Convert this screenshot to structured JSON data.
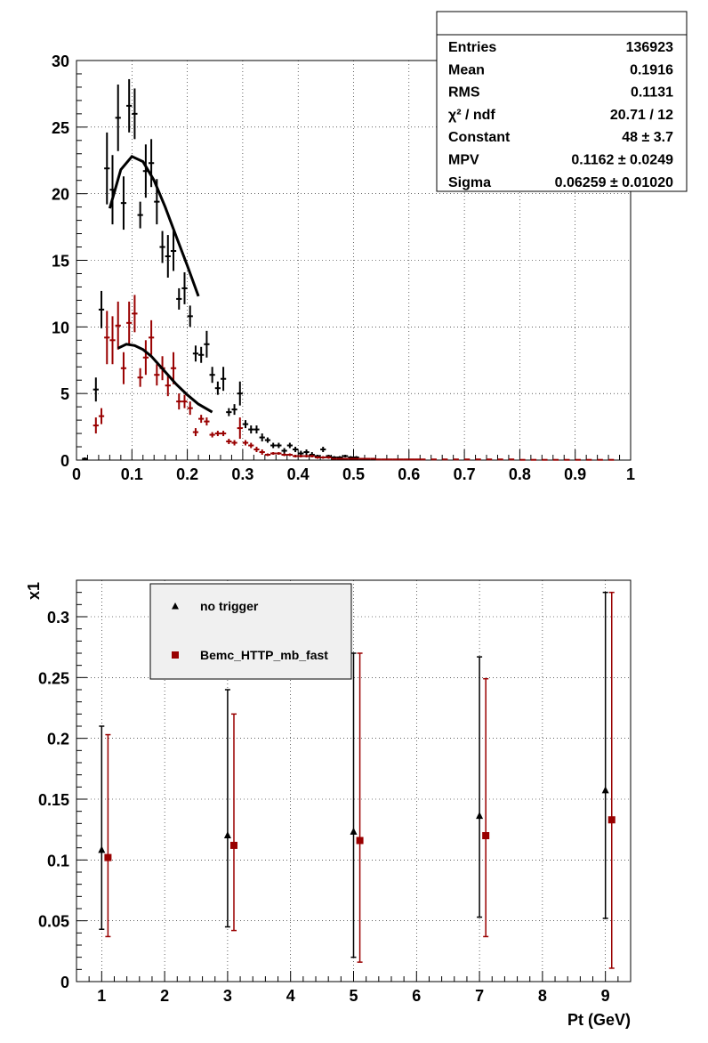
{
  "chart_data": [
    {
      "type": "histogram",
      "xlim": [
        0,
        1
      ],
      "ylim": [
        0,
        30
      ],
      "grid": true,
      "x_ticks": [
        "0",
        "0.1",
        "0.2",
        "0.3",
        "0.4",
        "0.5",
        "0.6",
        "0.7",
        "0.8",
        "0.9",
        "1"
      ],
      "y_ticks": [
        "0",
        "5",
        "10",
        "15",
        "20",
        "25",
        "30"
      ],
      "stats": [
        {
          "label": "Entries",
          "value": "136923"
        },
        {
          "label": "Mean",
          "value": "0.1916"
        },
        {
          "label": "RMS",
          "value": "0.1131"
        },
        {
          "label": "χ² / ndf",
          "value": "20.71 / 12"
        },
        {
          "label": "Constant",
          "value": "48 ± 3.7"
        },
        {
          "label": "MPV",
          "value": "0.1162 ± 0.0249"
        },
        {
          "label": "Sigma",
          "value": "0.06259 ± 0.01020"
        }
      ],
      "series": [
        {
          "color": "#000000",
          "points": [
            [
              0.015,
              0.1,
              0.1
            ],
            [
              0.035,
              5.3,
              0.9
            ],
            [
              0.045,
              11.3,
              1.4
            ],
            [
              0.055,
              21.9,
              2.7
            ],
            [
              0.065,
              20.3,
              2.6
            ],
            [
              0.075,
              25.7,
              2.5
            ],
            [
              0.085,
              19.3,
              2.0
            ],
            [
              0.095,
              26.6,
              2.0
            ],
            [
              0.105,
              26.0,
              1.9
            ],
            [
              0.115,
              18.4,
              1.0
            ],
            [
              0.125,
              21.7,
              2.0
            ],
            [
              0.135,
              22.3,
              1.8
            ],
            [
              0.145,
              19.4,
              1.7
            ],
            [
              0.155,
              16.0,
              1.2
            ],
            [
              0.165,
              15.3,
              1.6
            ],
            [
              0.175,
              15.7,
              1.5
            ],
            [
              0.185,
              12.1,
              0.8
            ],
            [
              0.195,
              12.9,
              1.2
            ],
            [
              0.205,
              10.8,
              0.8
            ],
            [
              0.215,
              8.0,
              0.6
            ],
            [
              0.225,
              7.9,
              0.6
            ],
            [
              0.235,
              8.7,
              1.0
            ],
            [
              0.245,
              6.4,
              0.6
            ],
            [
              0.255,
              5.4,
              0.5
            ],
            [
              0.265,
              6.1,
              0.9
            ],
            [
              0.275,
              3.6,
              0.3
            ],
            [
              0.285,
              3.8,
              0.4
            ],
            [
              0.295,
              5.0,
              0.9
            ],
            [
              0.305,
              2.7,
              0.3
            ],
            [
              0.315,
              2.3,
              0.3
            ],
            [
              0.325,
              2.3,
              0.3
            ],
            [
              0.335,
              1.7,
              0.3
            ],
            [
              0.345,
              1.5,
              0.2
            ],
            [
              0.355,
              1.1,
              0.2
            ],
            [
              0.365,
              1.1,
              0.2
            ],
            [
              0.375,
              0.7,
              0.2
            ],
            [
              0.385,
              1.1,
              0.2
            ],
            [
              0.395,
              0.8,
              0.2
            ],
            [
              0.405,
              0.5,
              0.2
            ],
            [
              0.415,
              0.6,
              0.2
            ],
            [
              0.425,
              0.4,
              0.2
            ],
            [
              0.435,
              0.3,
              0.1
            ],
            [
              0.445,
              0.8,
              0.2
            ],
            [
              0.455,
              0.3,
              0.1
            ],
            [
              0.465,
              0.2,
              0.1
            ],
            [
              0.475,
              0.2,
              0.1
            ],
            [
              0.485,
              0.3,
              0.1
            ],
            [
              0.495,
              0.2,
              0.1
            ],
            [
              0.505,
              0.2,
              0.1
            ]
          ],
          "fit": [
            [
              0.06,
              18.9
            ],
            [
              0.08,
              21.8
            ],
            [
              0.1,
              22.8
            ],
            [
              0.12,
              22.4
            ],
            [
              0.14,
              21.0
            ],
            [
              0.16,
              19.0
            ],
            [
              0.18,
              16.8
            ],
            [
              0.2,
              14.6
            ],
            [
              0.22,
              12.3
            ]
          ]
        },
        {
          "color": "#990000",
          "points": [
            [
              0.035,
              2.6,
              0.6
            ],
            [
              0.045,
              3.3,
              0.6
            ],
            [
              0.055,
              9.2,
              2.0
            ],
            [
              0.065,
              9.0,
              1.8
            ],
            [
              0.075,
              10.1,
              1.8
            ],
            [
              0.085,
              6.9,
              1.2
            ],
            [
              0.095,
              10.3,
              1.6
            ],
            [
              0.105,
              11.0,
              1.4
            ],
            [
              0.115,
              6.2,
              0.7
            ],
            [
              0.125,
              7.7,
              1.3
            ],
            [
              0.135,
              9.2,
              1.3
            ],
            [
              0.145,
              6.4,
              0.8
            ],
            [
              0.155,
              6.9,
              0.9
            ],
            [
              0.165,
              5.6,
              0.8
            ],
            [
              0.175,
              6.9,
              1.2
            ],
            [
              0.185,
              4.4,
              0.6
            ],
            [
              0.195,
              4.4,
              0.5
            ],
            [
              0.205,
              3.9,
              0.5
            ],
            [
              0.215,
              2.1,
              0.3
            ],
            [
              0.225,
              3.1,
              0.3
            ],
            [
              0.235,
              2.9,
              0.3
            ],
            [
              0.245,
              1.9,
              0.2
            ],
            [
              0.255,
              2.0,
              0.2
            ],
            [
              0.265,
              2.0,
              0.2
            ],
            [
              0.275,
              1.4,
              0.2
            ],
            [
              0.285,
              1.3,
              0.2
            ],
            [
              0.295,
              2.4,
              0.8
            ],
            [
              0.305,
              1.3,
              0.2
            ],
            [
              0.315,
              1.1,
              0.2
            ],
            [
              0.325,
              0.8,
              0.2
            ],
            [
              0.335,
              0.6,
              0.2
            ],
            [
              0.345,
              0.4,
              0.1
            ],
            [
              0.355,
              0.5,
              0.1
            ],
            [
              0.365,
              0.5,
              0.1
            ],
            [
              0.375,
              0.4,
              0.1
            ],
            [
              0.385,
              0.4,
              0.1
            ],
            [
              0.395,
              0.3,
              0.1
            ],
            [
              0.405,
              0.3,
              0.1
            ],
            [
              0.415,
              0.3,
              0.1
            ],
            [
              0.425,
              0.3,
              0.1
            ],
            [
              0.435,
              0.2,
              0.1
            ],
            [
              0.445,
              0.2,
              0.1
            ],
            [
              0.455,
              0.2,
              0.1
            ],
            [
              0.465,
              0.1,
              0.05
            ],
            [
              0.475,
              0.1,
              0.05
            ],
            [
              0.485,
              0.1,
              0.05
            ],
            [
              0.495,
              0.1,
              0.05
            ],
            [
              0.505,
              0.1,
              0.05
            ],
            [
              0.515,
              0.1,
              0.05
            ],
            [
              0.525,
              0.1,
              0.05
            ],
            [
              0.535,
              0.1,
              0.05
            ],
            [
              0.545,
              0.05,
              0.05
            ],
            [
              0.555,
              0.05,
              0.05
            ],
            [
              0.565,
              0.05,
              0.05
            ],
            [
              0.575,
              0.05,
              0.05
            ],
            [
              0.585,
              0.05,
              0.05
            ],
            [
              0.595,
              0.05,
              0.05
            ],
            [
              0.605,
              0.05,
              0.05
            ],
            [
              0.615,
              0.05,
              0.05
            ],
            [
              0.625,
              0.05,
              0.05
            ],
            [
              0.645,
              0.05,
              0.05
            ],
            [
              0.665,
              0.05,
              0.05
            ],
            [
              0.685,
              0.05,
              0.05
            ],
            [
              0.705,
              0.05,
              0.05
            ],
            [
              0.725,
              0.05,
              0.05
            ],
            [
              0.745,
              0.05,
              0.05
            ],
            [
              0.765,
              0.05,
              0.05
            ],
            [
              0.785,
              0.05,
              0.05
            ],
            [
              0.805,
              0.02,
              0.02
            ],
            [
              0.825,
              0.02,
              0.02
            ],
            [
              0.845,
              0.02,
              0.02
            ],
            [
              0.865,
              0.02,
              0.02
            ],
            [
              0.885,
              0.02,
              0.02
            ],
            [
              0.905,
              0.02,
              0.02
            ],
            [
              0.925,
              0.02,
              0.02
            ],
            [
              0.945,
              0.02,
              0.02
            ],
            [
              0.965,
              0.02,
              0.02
            ]
          ],
          "fit": [
            [
              0.075,
              8.4
            ],
            [
              0.09,
              8.7
            ],
            [
              0.105,
              8.6
            ],
            [
              0.12,
              8.3
            ],
            [
              0.135,
              7.8
            ],
            [
              0.15,
              7.1
            ],
            [
              0.165,
              6.4
            ],
            [
              0.18,
              5.7
            ],
            [
              0.2,
              4.9
            ],
            [
              0.22,
              4.2
            ],
            [
              0.245,
              3.6
            ]
          ]
        }
      ]
    },
    {
      "type": "scatter",
      "xlabel": "Pt (GeV)",
      "ylabel": "x1",
      "xlim": [
        0.6,
        9.4
      ],
      "ylim": [
        0,
        0.33
      ],
      "grid": true,
      "x_ticks": [
        "1",
        "2",
        "3",
        "4",
        "5",
        "6",
        "7",
        "8",
        "9"
      ],
      "y_ticks": [
        "0",
        "0.05",
        "0.1",
        "0.15",
        "0.2",
        "0.25",
        "0.3"
      ],
      "legend": "top-left",
      "series": [
        {
          "name": "no trigger",
          "marker": "triangle",
          "color": "#000000",
          "x": [
            1.0,
            3.0,
            5.0,
            7.0,
            9.0
          ],
          "y": [
            0.108,
            0.12,
            0.123,
            0.136,
            0.157
          ],
          "err_low": [
            0.065,
            0.075,
            0.103,
            0.083,
            0.105
          ],
          "err_high": [
            0.102,
            0.12,
            0.147,
            0.131,
            0.163
          ]
        },
        {
          "name": "Bemc_HTTP_mb_fast",
          "marker": "square",
          "color": "#990000",
          "x": [
            1.1,
            3.1,
            5.1,
            7.1,
            9.1
          ],
          "y": [
            0.102,
            0.112,
            0.116,
            0.12,
            0.133
          ],
          "err_low": [
            0.065,
            0.07,
            0.1,
            0.083,
            0.122
          ],
          "err_high": [
            0.101,
            0.108,
            0.154,
            0.129,
            0.187
          ]
        }
      ]
    }
  ]
}
